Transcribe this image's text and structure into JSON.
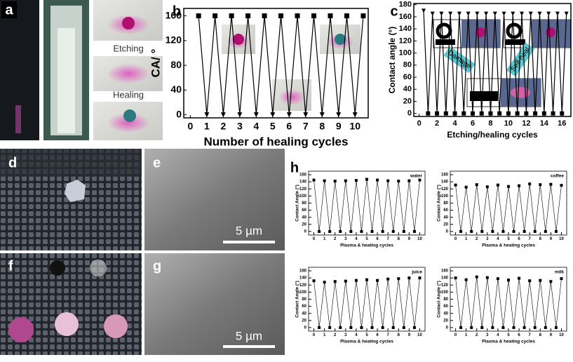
{
  "panel_labels": [
    "a",
    "b",
    "c",
    "d",
    "e",
    "f",
    "g",
    "h"
  ],
  "photo_labels": {
    "etching": "Etching",
    "healing": "Healing",
    "scale_e": "5 µm",
    "scale_g": "5 µm"
  },
  "chart_data": [
    {
      "type": "line",
      "ylabel": "CA/ °",
      "xlabel": "Number of healing cycles",
      "x": [
        0.5,
        1,
        1.5,
        2,
        2.5,
        3,
        3.5,
        4,
        4.5,
        5,
        5.5,
        6,
        6.5,
        7,
        7.5,
        8,
        8.5,
        9,
        9.5,
        10,
        10.5
      ],
      "series": [
        {
          "color": "#000000",
          "values": [
            160,
            0,
            160,
            0,
            160,
            0,
            160,
            0,
            160,
            0,
            160,
            0,
            160,
            0,
            160,
            0,
            160,
            0,
            160,
            0,
            160
          ]
        }
      ],
      "marker_high": "square",
      "marker_low": "triangle",
      "xlim": [
        -0.4,
        10.8
      ],
      "ylim": [
        -5,
        172
      ],
      "xticks": [
        0,
        1,
        2,
        3,
        4,
        5,
        6,
        7,
        8,
        9,
        10
      ],
      "yticks": [
        0,
        40,
        80,
        120,
        160
      ]
    },
    {
      "type": "line",
      "ylabel": "Contact angle (°)",
      "xlabel": "Etching/healing cycles",
      "annotations": [
        "Damage",
        "Self-heal"
      ],
      "x": [
        0.5,
        1,
        1.5,
        2,
        2.5,
        3,
        3.5,
        4,
        4.5,
        5,
        5.5,
        6,
        6.5,
        7,
        7.5,
        8,
        8.5,
        9,
        9.5,
        10,
        10.5,
        11,
        11.5,
        12,
        12.5,
        13,
        13.5,
        14,
        14.5,
        15,
        15.5,
        16,
        16.5
      ],
      "series": [
        {
          "color": "#000000",
          "values": [
            170,
            0,
            165,
            0,
            165,
            0,
            165,
            0,
            165,
            0,
            165,
            0,
            165,
            0,
            165,
            0,
            165,
            0,
            165,
            0,
            165,
            0,
            165,
            0,
            165,
            0,
            165,
            0,
            165,
            0,
            165,
            0,
            165
          ]
        }
      ],
      "marker_high": "triangle",
      "marker_low": "square",
      "xlim": [
        -0.6,
        17
      ],
      "ylim": [
        -5,
        182
      ],
      "xticks": [
        0,
        2,
        4,
        6,
        8,
        10,
        12,
        14,
        16
      ],
      "yticks": [
        0,
        20,
        40,
        60,
        80,
        100,
        120,
        140,
        160,
        180
      ]
    },
    {
      "type": "line",
      "title": "water",
      "ylabel": "Contact Angle (°)",
      "xlabel": "Plasma & heating cycles",
      "x": [
        0,
        0.5,
        1,
        1.5,
        2,
        2.5,
        3,
        3.5,
        4,
        4.5,
        5,
        5.5,
        6,
        6.5,
        7,
        7.5,
        8,
        8.5,
        9,
        9.5,
        10
      ],
      "series": [
        {
          "color": "#000000",
          "values": [
            145,
            0,
            143,
            0,
            142,
            0,
            143,
            0,
            144,
            0,
            147,
            0,
            145,
            0,
            143,
            0,
            142,
            0,
            143,
            0,
            145
          ]
        }
      ],
      "marker_high": "square",
      "marker_low": "square",
      "xlim": [
        -0.5,
        10.5
      ],
      "ylim": [
        -10,
        170
      ],
      "xticks": [
        0,
        1,
        2,
        3,
        4,
        5,
        6,
        7,
        8,
        9,
        10
      ],
      "yticks": [
        0,
        20,
        40,
        60,
        80,
        100,
        120,
        140,
        160
      ]
    },
    {
      "type": "line",
      "title": "coffee",
      "ylabel": "Contact Angle (°)",
      "xlabel": "Plasma & heating cycles",
      "x": [
        0,
        0.5,
        1,
        1.5,
        2,
        2.5,
        3,
        3.5,
        4,
        4.5,
        5,
        5.5,
        6,
        6.5,
        7,
        7.5,
        8,
        8.5,
        9,
        9.5,
        10
      ],
      "series": [
        {
          "color": "#000000",
          "values": [
            131,
            0,
            125,
            0,
            132,
            0,
            126,
            0,
            131,
            0,
            127,
            0,
            129,
            0,
            134,
            0,
            132,
            0,
            133,
            0,
            130
          ]
        }
      ],
      "marker_high": "square",
      "marker_low": "square",
      "xlim": [
        -0.5,
        10.5
      ],
      "ylim": [
        -10,
        170
      ],
      "xticks": [
        0,
        1,
        2,
        3,
        4,
        5,
        6,
        7,
        8,
        9,
        10
      ],
      "yticks": [
        0,
        20,
        40,
        60,
        80,
        100,
        120,
        140,
        160
      ]
    },
    {
      "type": "line",
      "title": "juice",
      "ylabel": "Contact Angle (°)",
      "xlabel": "Plasma & heating cycles",
      "x": [
        0,
        0.5,
        1,
        1.5,
        2,
        2.5,
        3,
        3.5,
        4,
        4.5,
        5,
        5.5,
        6,
        6.5,
        7,
        7.5,
        8,
        8.5,
        9,
        9.5,
        10
      ],
      "series": [
        {
          "color": "#000000",
          "values": [
            132,
            0,
            128,
            0,
            130,
            0,
            131,
            0,
            133,
            0,
            135,
            0,
            133,
            0,
            137,
            0,
            138,
            0,
            140,
            0,
            140
          ]
        }
      ],
      "marker_high": "square",
      "marker_low": "square",
      "xlim": [
        -0.5,
        10.5
      ],
      "ylim": [
        -10,
        170
      ],
      "xticks": [
        0,
        1,
        2,
        3,
        4,
        5,
        6,
        7,
        8,
        9,
        10
      ],
      "yticks": [
        0,
        20,
        40,
        60,
        80,
        100,
        120,
        140,
        160
      ]
    },
    {
      "type": "line",
      "title": "milk",
      "ylabel": "Contact Angle (°)",
      "xlabel": "Plasma & heating cycles",
      "x": [
        0,
        0.5,
        1,
        1.5,
        2,
        2.5,
        3,
        3.5,
        4,
        4.5,
        5,
        5.5,
        6,
        6.5,
        7,
        7.5,
        8,
        8.5,
        9,
        9.5,
        10
      ],
      "series": [
        {
          "color": "#000000",
          "values": [
            140,
            0,
            135,
            0,
            143,
            0,
            141,
            0,
            138,
            0,
            134,
            0,
            139,
            0,
            132,
            0,
            133,
            0,
            130,
            0,
            138
          ]
        }
      ],
      "marker_high": "square",
      "marker_low": "square",
      "xlim": [
        -0.5,
        10.5
      ],
      "ylim": [
        -10,
        170
      ],
      "xticks": [
        0,
        1,
        2,
        3,
        4,
        5,
        6,
        7,
        8,
        9,
        10
      ],
      "yticks": [
        0,
        20,
        40,
        60,
        80,
        100,
        120,
        140,
        160
      ]
    }
  ]
}
